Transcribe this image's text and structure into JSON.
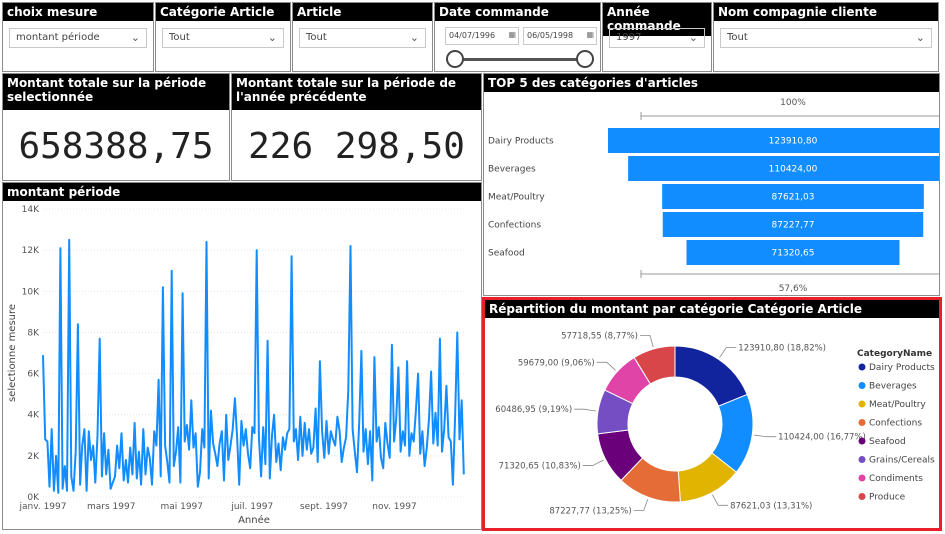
{
  "filters": {
    "choix_mesure": {
      "title": "choix mesure",
      "value": "montant période"
    },
    "categorie": {
      "title": "Catégorie Article",
      "value": "Tout"
    },
    "article": {
      "title": "Article",
      "value": "Tout"
    },
    "date": {
      "title": "Date commande",
      "start": "04/07/1996",
      "end": "06/05/1998",
      "slider_start": 0.0,
      "slider_end": 1.0
    },
    "annee": {
      "title": "Année commande",
      "value": "1997"
    },
    "compagnie": {
      "title": "Nom compagnie cliente",
      "value": "Tout"
    }
  },
  "kpi1": {
    "title": "Montant totale sur la période selectionnée",
    "value": "658388,75"
  },
  "kpi2": {
    "title": "Montant totale sur la période de l'année précédente",
    "value": "226 298,50"
  },
  "icons": {
    "chevron": "chevron-down-icon",
    "calendar": "calendar-icon"
  },
  "chart_data": [
    {
      "type": "line",
      "title": "montant période",
      "xlabel": "Année",
      "ylabel": "selectionne mesure",
      "color": "#118DFF",
      "ylim": [
        0,
        14000
      ],
      "yticks": [
        0,
        2000,
        4000,
        6000,
        8000,
        10000,
        12000,
        14000
      ],
      "ytick_labels": [
        "0K",
        "2K",
        "4K",
        "6K",
        "8K",
        "10K",
        "12K",
        "14K"
      ],
      "xtick_labels": [
        "janv. 1997",
        "mars 1997",
        "mai 1997",
        "juil. 1997",
        "sept. 1997",
        "nov. 1997"
      ],
      "xtick_positions": [
        0,
        59,
        120,
        181,
        243,
        304
      ],
      "x_days": 365,
      "values": [
        6900,
        2800,
        2700,
        500,
        3300,
        300,
        2000,
        200,
        12100,
        400,
        1500,
        300,
        12500,
        1000,
        300,
        2200,
        8400,
        600,
        2500,
        3300,
        300,
        3200,
        1800,
        2500,
        700,
        3000,
        7700,
        1000,
        3100,
        1100,
        2300,
        400,
        700,
        1000,
        2500,
        1400,
        3100,
        800,
        1800,
        700,
        2400,
        1100,
        3600,
        900,
        2200,
        600,
        3300,
        1100,
        2400,
        1900,
        600,
        3200,
        2500,
        5700,
        1000,
        10200,
        2500,
        1700,
        700,
        11000,
        1500,
        2200,
        3400,
        700,
        9900,
        2700,
        3500,
        2300,
        4700,
        2400,
        3100,
        500,
        1200,
        3300,
        2400,
        12400,
        900,
        4200,
        2600,
        2100,
        1500,
        2600,
        3200,
        800,
        4000,
        1800,
        2500,
        3300,
        4800,
        2900,
        600,
        3700,
        2500,
        3300,
        2100,
        1400,
        3400,
        3100,
        12000,
        2900,
        1000,
        3400,
        1600,
        7600,
        900,
        3000,
        4000,
        1700,
        2600,
        1300,
        2900,
        2300,
        3100,
        3300,
        11700,
        2700,
        3300,
        1800,
        3900,
        2000,
        3600,
        2300,
        3300,
        2100,
        2400,
        4300,
        1700,
        6600,
        3200,
        1900,
        3700,
        2100,
        3200,
        2800,
        2500,
        3900,
        3200,
        1700,
        2400,
        2900,
        5200,
        12200,
        3300,
        2200,
        1200,
        3600,
        7100,
        2200,
        3300,
        1600,
        3200,
        800,
        6800,
        2700,
        3400,
        1900,
        1400,
        3600,
        2600,
        1900,
        7400,
        2700,
        3800,
        6300,
        2200,
        3200,
        2500,
        6600,
        2000,
        3100,
        2700,
        4200,
        6000,
        2100,
        3200,
        1500,
        2400,
        3800,
        6100,
        2600,
        4100,
        2500,
        7700,
        2200,
        3300,
        5400,
        2900,
        2700,
        600,
        3900,
        8000,
        2800,
        4700,
        1100
      ]
    },
    {
      "type": "bar",
      "subtype": "funnel",
      "title": "TOP 5 des catégories d'articles",
      "color": "#118DFF",
      "categories": [
        "Dairy Products",
        "Beverages",
        "Meat/Poultry",
        "Confections",
        "Seafood"
      ],
      "values": [
        123910.8,
        110424.0,
        87621.03,
        87227.77,
        71320.65
      ],
      "value_labels": [
        "123910,80",
        "110424,00",
        "87621,03",
        "87227,77",
        "71320,65"
      ],
      "top_label": "100%",
      "bottom_label": "57,6%"
    },
    {
      "type": "pie",
      "subtype": "donut",
      "title": "Répartition du montant par catégorie Catégorie Article",
      "legend_title": "CategoryName",
      "legend_position": "right",
      "categories": [
        "Dairy Products",
        "Beverages",
        "Meat/Poultry",
        "Confections",
        "Seafood",
        "Grains/Cereals",
        "Condiments",
        "Produce"
      ],
      "values": [
        123910.8,
        110424.0,
        87621.03,
        87227.77,
        71320.65,
        60486.95,
        59679.0,
        57718.55
      ],
      "labels": [
        "123910,80 (18,82%)",
        "110424,00 (16,77%)",
        "87621,03 (13,31%)",
        "87227,77 (13,25%)",
        "71320,65 (10,83%)",
        "60486,95 (9,19%)",
        "59679,00 (9,06%)",
        "57718,55 (8,77%)"
      ],
      "colors": [
        "#12239E",
        "#118DFF",
        "#E0B400",
        "#E66C37",
        "#6B007B",
        "#744EC2",
        "#E044A7",
        "#D9464A"
      ]
    }
  ]
}
